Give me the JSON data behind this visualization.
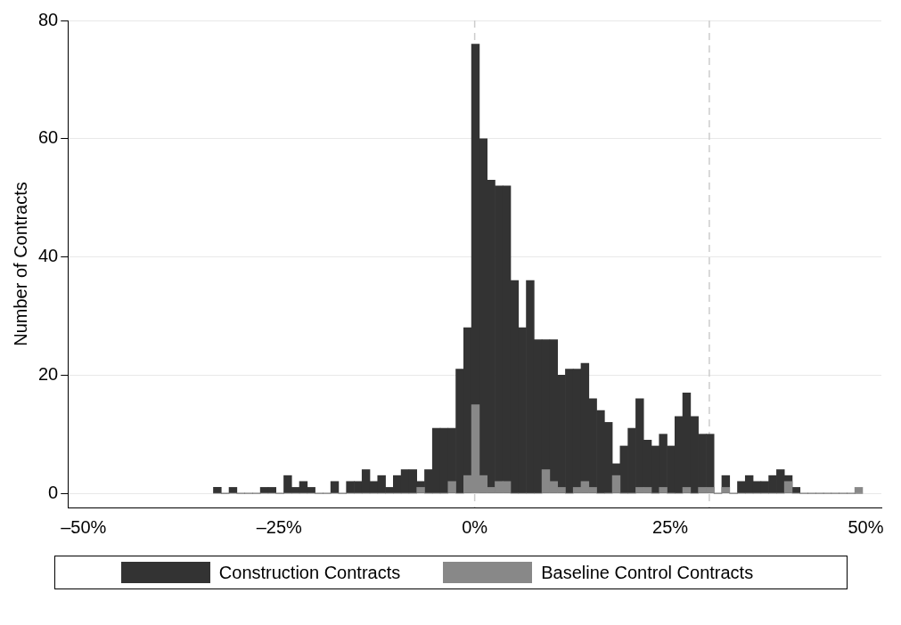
{
  "chart_data": {
    "type": "histogram",
    "ylabel": "Number of Contracts",
    "bins": [
      -33.4,
      -32.4,
      -31.4,
      -30.4,
      -29.4,
      -28.4,
      -27.4,
      -26.4,
      -25.4,
      -24.4,
      -23.4,
      -22.4,
      -21.4,
      -20.4,
      -19.4,
      -18.4,
      -17.4,
      -16.4,
      -15.4,
      -14.4,
      -13.4,
      -12.4,
      -11.4,
      -10.4,
      -9.4,
      -8.4,
      -7.4,
      -6.4,
      -5.4,
      -4.4,
      -3.4,
      -2.4,
      -1.4,
      -0.4,
      0.6,
      1.6,
      2.6,
      3.6,
      4.6,
      5.6,
      6.6,
      7.6,
      8.6,
      9.6,
      10.6,
      11.6,
      12.6,
      13.6,
      14.6,
      15.6,
      16.6,
      17.6,
      18.6,
      19.6,
      20.6,
      21.6,
      22.6,
      23.6,
      24.6,
      25.6,
      26.6,
      27.6,
      28.6,
      29.6,
      30.6,
      31.6,
      32.6,
      33.6,
      34.6,
      35.6,
      36.6,
      37.6,
      38.6,
      39.6,
      40.6,
      41.6,
      42.6,
      43.6,
      44.6,
      45.6,
      46.6,
      47.6,
      48.6,
      49.6
    ],
    "series": [
      {
        "name": "Construction Contracts",
        "color": "#333333",
        "values": [
          1,
          0,
          1,
          0,
          0,
          0,
          1,
          1,
          0,
          3,
          1,
          2,
          1,
          0,
          0,
          2,
          0,
          2,
          2,
          4,
          2,
          3,
          1,
          3,
          4,
          4,
          2,
          4,
          11,
          11,
          11,
          21,
          28,
          76,
          60,
          53,
          52,
          52,
          36,
          28,
          36,
          26,
          26,
          26,
          20,
          21,
          21,
          22,
          16,
          14,
          12,
          5,
          8,
          11,
          16,
          9,
          8,
          10,
          8,
          13,
          17,
          13,
          10,
          10,
          0,
          3,
          0,
          2,
          3,
          2,
          2,
          3,
          4,
          3,
          1,
          0,
          0,
          0,
          0,
          0,
          0,
          0,
          0
        ]
      },
      {
        "name": "Baseline Control Contracts",
        "color": "#888888",
        "values": [
          0,
          0,
          0,
          0,
          0,
          0,
          0,
          0,
          0,
          0,
          0,
          0,
          0,
          0,
          0,
          0,
          0,
          0,
          0,
          0,
          0,
          0,
          0,
          0,
          0,
          0,
          1,
          0,
          0,
          0,
          2,
          0,
          3,
          15,
          3,
          1,
          2,
          2,
          0,
          0,
          0,
          0,
          4,
          2,
          1,
          0,
          1,
          2,
          1,
          0,
          0,
          3,
          0,
          0,
          1,
          1,
          0,
          1,
          0,
          0,
          1,
          0,
          1,
          1,
          0,
          1,
          0,
          0,
          0,
          0,
          0,
          0,
          0,
          2,
          0,
          0,
          0,
          0,
          0,
          0,
          0,
          0,
          1
        ]
      }
    ],
    "xlim": [
      -52,
      52
    ],
    "xticks": [
      {
        "value": -50,
        "label": "–50%"
      },
      {
        "value": -25,
        "label": "–25%"
      },
      {
        "value": 0,
        "label": "0%"
      },
      {
        "value": 25,
        "label": "25%"
      },
      {
        "value": 50,
        "label": "50%"
      }
    ],
    "ylim": [
      -2.4,
      80
    ],
    "yticks": [
      0,
      20,
      40,
      60,
      80
    ],
    "ref_lines": [
      {
        "axis": "x",
        "value": 0,
        "color": "#cccccc",
        "line_style": "dashed"
      },
      {
        "axis": "x",
        "value": 30,
        "color": "#cccccc",
        "line_style": "dashed"
      }
    ],
    "grid": "y",
    "legend": "bottom"
  }
}
